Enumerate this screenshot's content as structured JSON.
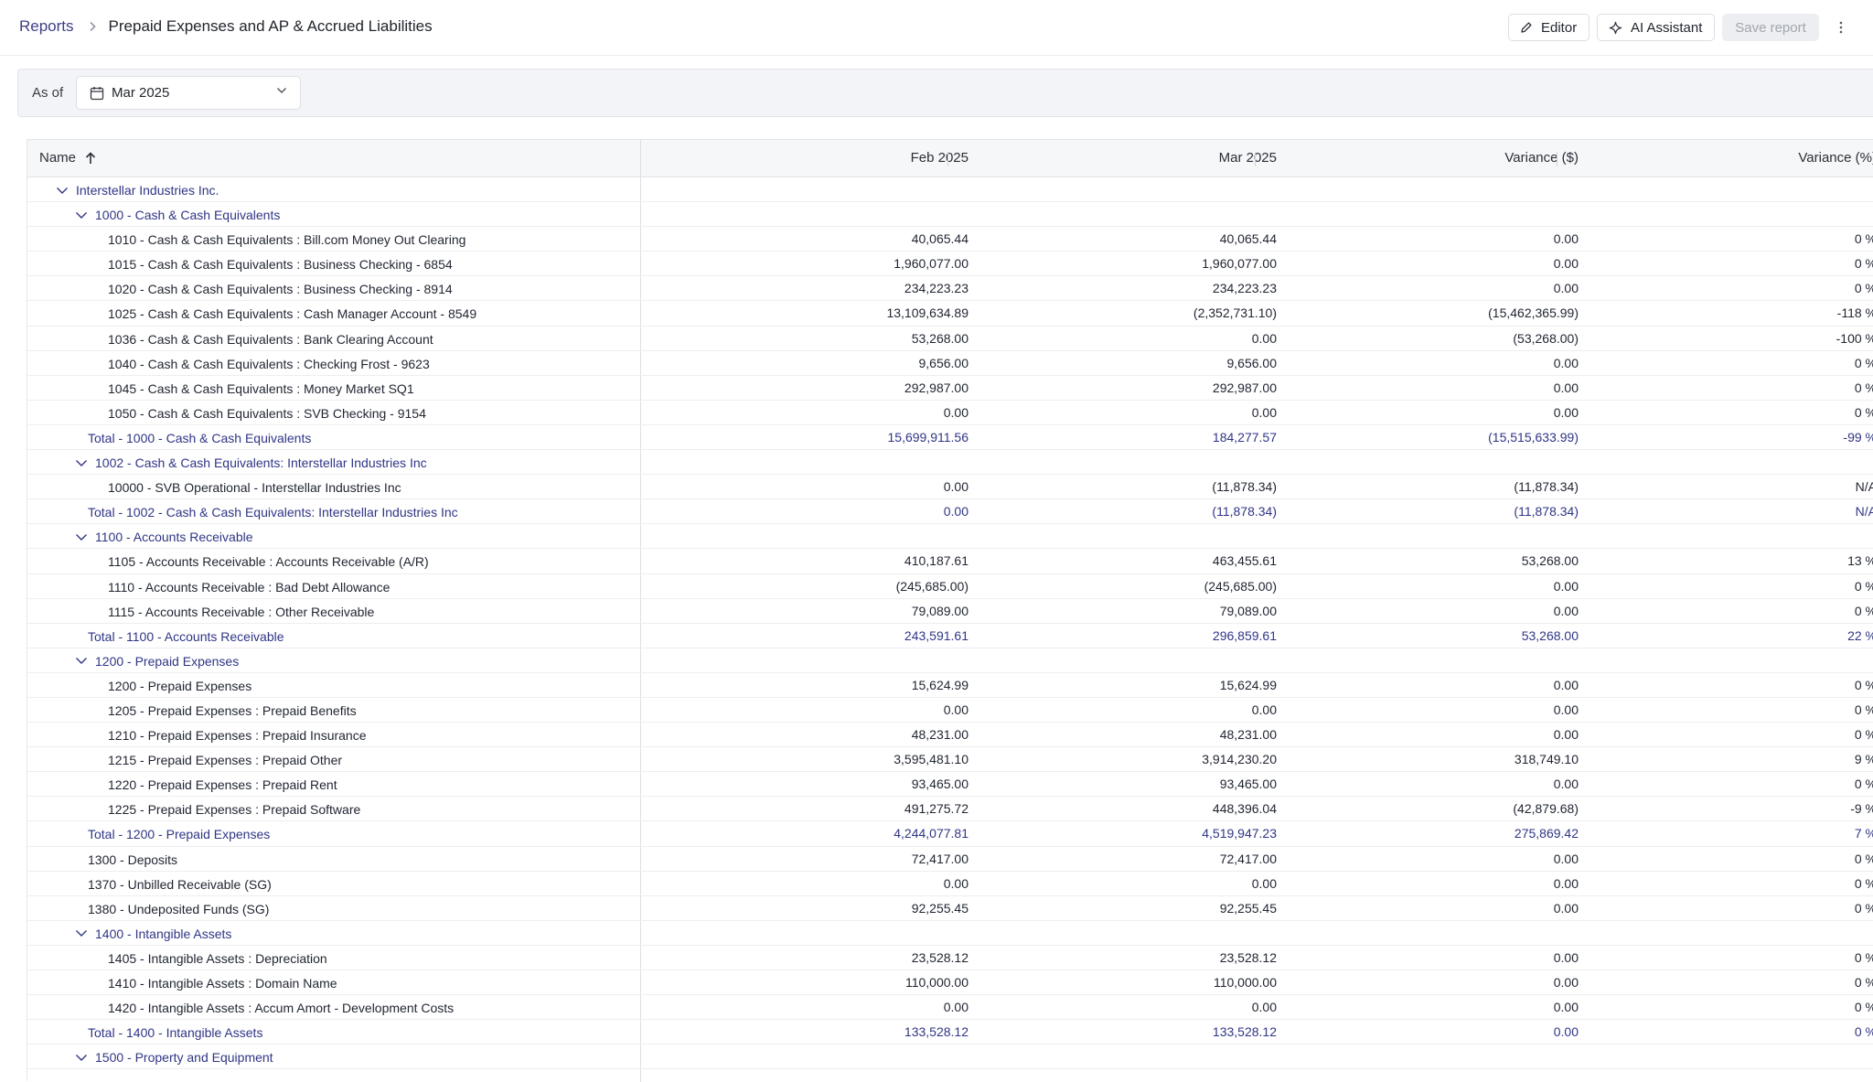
{
  "breadcrumb": {
    "root": "Reports",
    "current": "Prepaid Expenses and AP & Accrued Liabilities"
  },
  "toolbar": {
    "editor": "Editor",
    "ai": "AI Assistant",
    "save": "Save report"
  },
  "filter": {
    "label": "As of",
    "value": "Mar 2025"
  },
  "columns": {
    "name": "Name",
    "c1": "Feb 2025",
    "c2": "Mar 2025",
    "c3": "Variance ($)",
    "c4": "Variance (%)"
  },
  "rows": [
    {
      "level": 0,
      "kind": "group",
      "label": "Interstellar Industries Inc.",
      "c1": "",
      "c2": "",
      "c3": "",
      "c4": ""
    },
    {
      "level": 1,
      "kind": "group",
      "label": "1000 - Cash & Cash Equivalents",
      "c1": "",
      "c2": "",
      "c3": "",
      "c4": ""
    },
    {
      "level": 2,
      "kind": "leaf",
      "label": "1010 - Cash & Cash Equivalents : Bill.com Money Out Clearing",
      "c1": "40,065.44",
      "c2": "40,065.44",
      "c3": "0.00",
      "c4": "0 %"
    },
    {
      "level": 2,
      "kind": "leaf",
      "label": "1015 - Cash & Cash Equivalents : Business Checking - 6854",
      "c1": "1,960,077.00",
      "c2": "1,960,077.00",
      "c3": "0.00",
      "c4": "0 %"
    },
    {
      "level": 2,
      "kind": "leaf",
      "label": "1020 - Cash & Cash Equivalents : Business Checking - 8914",
      "c1": "234,223.23",
      "c2": "234,223.23",
      "c3": "0.00",
      "c4": "0 %"
    },
    {
      "level": 2,
      "kind": "leaf",
      "label": "1025 - Cash & Cash Equivalents : Cash Manager Account - 8549",
      "c1": "13,109,634.89",
      "c2": "(2,352,731.10)",
      "c3": "(15,462,365.99)",
      "c4": "-118 %"
    },
    {
      "level": 2,
      "kind": "leaf",
      "label": "1036 - Cash & Cash Equivalents : Bank Clearing Account",
      "c1": "53,268.00",
      "c2": "0.00",
      "c3": "(53,268.00)",
      "c4": "-100 %"
    },
    {
      "level": 2,
      "kind": "leaf",
      "label": "1040 - Cash & Cash Equivalents : Checking Frost - 9623",
      "c1": "9,656.00",
      "c2": "9,656.00",
      "c3": "0.00",
      "c4": "0 %"
    },
    {
      "level": 2,
      "kind": "leaf",
      "label": "1045 - Cash & Cash Equivalents : Money Market SQ1",
      "c1": "292,987.00",
      "c2": "292,987.00",
      "c3": "0.00",
      "c4": "0 %"
    },
    {
      "level": 2,
      "kind": "leaf",
      "label": "1050 - Cash & Cash Equivalents : SVB Checking - 9154",
      "c1": "0.00",
      "c2": "0.00",
      "c3": "0.00",
      "c4": "0 %"
    },
    {
      "level": 1,
      "kind": "total",
      "label": "Total - 1000 - Cash & Cash Equivalents",
      "c1": "15,699,911.56",
      "c2": "184,277.57",
      "c3": "(15,515,633.99)",
      "c4": "-99 %"
    },
    {
      "level": 1,
      "kind": "group",
      "label": "1002 - Cash & Cash Equivalents: Interstellar Industries Inc",
      "c1": "",
      "c2": "",
      "c3": "",
      "c4": ""
    },
    {
      "level": 2,
      "kind": "leaf",
      "label": "10000 - SVB Operational - Interstellar Industries Inc",
      "c1": "0.00",
      "c2": "(11,878.34)",
      "c3": "(11,878.34)",
      "c4": "N/A"
    },
    {
      "level": 1,
      "kind": "total",
      "label": "Total - 1002 - Cash & Cash Equivalents: Interstellar Industries Inc",
      "c1": "0.00",
      "c2": "(11,878.34)",
      "c3": "(11,878.34)",
      "c4": "N/A"
    },
    {
      "level": 1,
      "kind": "group",
      "label": "1100 - Accounts Receivable",
      "c1": "",
      "c2": "",
      "c3": "",
      "c4": ""
    },
    {
      "level": 2,
      "kind": "leaf",
      "label": "1105 - Accounts Receivable : Accounts Receivable (A/R)",
      "c1": "410,187.61",
      "c2": "463,455.61",
      "c3": "53,268.00",
      "c4": "13 %"
    },
    {
      "level": 2,
      "kind": "leaf",
      "label": "1110 - Accounts Receivable : Bad Debt Allowance",
      "c1": "(245,685.00)",
      "c2": "(245,685.00)",
      "c3": "0.00",
      "c4": "0 %"
    },
    {
      "level": 2,
      "kind": "leaf",
      "label": "1115 - Accounts Receivable : Other Receivable",
      "c1": "79,089.00",
      "c2": "79,089.00",
      "c3": "0.00",
      "c4": "0 %"
    },
    {
      "level": 1,
      "kind": "total",
      "label": "Total - 1100 - Accounts Receivable",
      "c1": "243,591.61",
      "c2": "296,859.61",
      "c3": "53,268.00",
      "c4": "22 %"
    },
    {
      "level": 1,
      "kind": "group",
      "label": "1200 - Prepaid Expenses",
      "c1": "",
      "c2": "",
      "c3": "",
      "c4": ""
    },
    {
      "level": 2,
      "kind": "leaf",
      "label": "1200 - Prepaid Expenses",
      "c1": "15,624.99",
      "c2": "15,624.99",
      "c3": "0.00",
      "c4": "0 %"
    },
    {
      "level": 2,
      "kind": "leaf",
      "label": "1205 - Prepaid Expenses : Prepaid Benefits",
      "c1": "0.00",
      "c2": "0.00",
      "c3": "0.00",
      "c4": "0 %"
    },
    {
      "level": 2,
      "kind": "leaf",
      "label": "1210 - Prepaid Expenses : Prepaid Insurance",
      "c1": "48,231.00",
      "c2": "48,231.00",
      "c3": "0.00",
      "c4": "0 %"
    },
    {
      "level": 2,
      "kind": "leaf",
      "label": "1215 - Prepaid Expenses : Prepaid Other",
      "c1": "3,595,481.10",
      "c2": "3,914,230.20",
      "c3": "318,749.10",
      "c4": "9 %"
    },
    {
      "level": 2,
      "kind": "leaf",
      "label": "1220 - Prepaid Expenses : Prepaid Rent",
      "c1": "93,465.00",
      "c2": "93,465.00",
      "c3": "0.00",
      "c4": "0 %"
    },
    {
      "level": 2,
      "kind": "leaf",
      "label": "1225 - Prepaid Expenses : Prepaid Software",
      "c1": "491,275.72",
      "c2": "448,396.04",
      "c3": "(42,879.68)",
      "c4": "-9 %"
    },
    {
      "level": 1,
      "kind": "total",
      "label": "Total - 1200 - Prepaid Expenses",
      "c1": "4,244,077.81",
      "c2": "4,519,947.23",
      "c3": "275,869.42",
      "c4": "7 %"
    },
    {
      "level": 1,
      "kind": "plain",
      "label": "1300 - Deposits",
      "c1": "72,417.00",
      "c2": "72,417.00",
      "c3": "0.00",
      "c4": "0 %"
    },
    {
      "level": 1,
      "kind": "plain",
      "label": "1370 - Unbilled Receivable (SG)",
      "c1": "0.00",
      "c2": "0.00",
      "c3": "0.00",
      "c4": "0 %"
    },
    {
      "level": 1,
      "kind": "plain",
      "label": "1380 - Undeposited Funds (SG)",
      "c1": "92,255.45",
      "c2": "92,255.45",
      "c3": "0.00",
      "c4": "0 %"
    },
    {
      "level": 1,
      "kind": "group",
      "label": "1400 - Intangible Assets",
      "c1": "",
      "c2": "",
      "c3": "",
      "c4": ""
    },
    {
      "level": 2,
      "kind": "leaf",
      "label": "1405 - Intangible Assets : Depreciation",
      "c1": "23,528.12",
      "c2": "23,528.12",
      "c3": "0.00",
      "c4": "0 %"
    },
    {
      "level": 2,
      "kind": "leaf",
      "label": "1410 - Intangible Assets : Domain Name",
      "c1": "110,000.00",
      "c2": "110,000.00",
      "c3": "0.00",
      "c4": "0 %"
    },
    {
      "level": 2,
      "kind": "leaf",
      "label": "1420 - Intangible Assets : Accum Amort - Development Costs",
      "c1": "0.00",
      "c2": "0.00",
      "c3": "0.00",
      "c4": "0 %"
    },
    {
      "level": 1,
      "kind": "total",
      "label": "Total - 1400 - Intangible Assets",
      "c1": "133,528.12",
      "c2": "133,528.12",
      "c3": "0.00",
      "c4": "0 %"
    },
    {
      "level": 1,
      "kind": "group",
      "label": "1500 - Property and Equipment",
      "c1": "",
      "c2": "",
      "c3": "",
      "c4": ""
    }
  ]
}
